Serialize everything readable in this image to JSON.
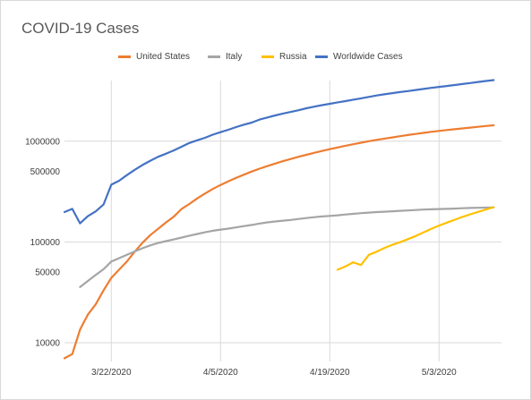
{
  "chart_data": {
    "type": "line",
    "title": "COVID-19 Cases",
    "xlabel": "",
    "ylabel": "",
    "y_scale": "log",
    "ylim": [
      6500,
      4000000
    ],
    "xlim": [
      "2020-03-16",
      "2020-05-11"
    ],
    "grid": true,
    "legend_placement": "top",
    "x_ticks": [
      {
        "date": "2020-03-22",
        "label": "3/22/2020"
      },
      {
        "date": "2020-04-05",
        "label": "4/5/2020"
      },
      {
        "date": "2020-04-19",
        "label": "4/19/2020"
      },
      {
        "date": "2020-05-03",
        "label": "5/3/2020"
      }
    ],
    "y_ticks": [
      {
        "value": 10000,
        "label": "10000"
      },
      {
        "value": 50000,
        "label": "50000"
      },
      {
        "value": 100000,
        "label": "100000"
      },
      {
        "value": 500000,
        "label": "500000"
      },
      {
        "value": 1000000,
        "label": "1000000"
      }
    ],
    "series": [
      {
        "name": "United States",
        "color": "#ED7D31",
        "points": [
          [
            "2020-03-16",
            7000
          ],
          [
            "2020-03-17",
            7700
          ],
          [
            "2020-03-18",
            13500
          ],
          [
            "2020-03-19",
            19000
          ],
          [
            "2020-03-20",
            24000
          ],
          [
            "2020-03-21",
            33000
          ],
          [
            "2020-03-22",
            44000
          ],
          [
            "2020-03-23",
            53000
          ],
          [
            "2020-03-24",
            64000
          ],
          [
            "2020-03-25",
            80000
          ],
          [
            "2020-03-26",
            98000
          ],
          [
            "2020-03-27",
            117000
          ],
          [
            "2020-03-28",
            135000
          ],
          [
            "2020-03-29",
            156000
          ],
          [
            "2020-03-30",
            178000
          ],
          [
            "2020-03-31",
            212000
          ],
          [
            "2020-04-01",
            238000
          ],
          [
            "2020-04-02",
            270000
          ],
          [
            "2020-04-03",
            302000
          ],
          [
            "2020-04-04",
            335000
          ],
          [
            "2020-04-05",
            368000
          ],
          [
            "2020-04-06",
            400000
          ],
          [
            "2020-04-07",
            432000
          ],
          [
            "2020-04-08",
            465000
          ],
          [
            "2020-04-09",
            500000
          ],
          [
            "2020-04-10",
            533000
          ],
          [
            "2020-04-11",
            566000
          ],
          [
            "2020-04-12",
            599000
          ],
          [
            "2020-04-13",
            633000
          ],
          [
            "2020-04-14",
            666000
          ],
          [
            "2020-04-15",
            700000
          ],
          [
            "2020-04-16",
            733000
          ],
          [
            "2020-04-17",
            766000
          ],
          [
            "2020-04-18",
            800000
          ],
          [
            "2020-04-19",
            833000
          ],
          [
            "2020-04-20",
            866000
          ],
          [
            "2020-04-21",
            900000
          ],
          [
            "2020-04-22",
            933000
          ],
          [
            "2020-04-23",
            966000
          ],
          [
            "2020-04-24",
            1000000
          ],
          [
            "2020-04-25",
            1030000
          ],
          [
            "2020-04-26",
            1060000
          ],
          [
            "2020-04-27",
            1090000
          ],
          [
            "2020-04-28",
            1120000
          ],
          [
            "2020-04-29",
            1150000
          ],
          [
            "2020-04-30",
            1180000
          ],
          [
            "2020-05-01",
            1210000
          ],
          [
            "2020-05-02",
            1240000
          ],
          [
            "2020-05-03",
            1265000
          ],
          [
            "2020-05-04",
            1290000
          ],
          [
            "2020-05-05",
            1315000
          ],
          [
            "2020-05-06",
            1340000
          ],
          [
            "2020-05-07",
            1365000
          ],
          [
            "2020-05-08",
            1390000
          ],
          [
            "2020-05-09",
            1415000
          ],
          [
            "2020-05-10",
            1440000
          ]
        ]
      },
      {
        "name": "Italy",
        "color": "#A5A5A5",
        "points": [
          [
            "2020-03-18",
            35700
          ],
          [
            "2020-03-19",
            41000
          ],
          [
            "2020-03-20",
            47000
          ],
          [
            "2020-03-21",
            53500
          ],
          [
            "2020-03-22",
            63900
          ],
          [
            "2020-03-23",
            69000
          ],
          [
            "2020-03-24",
            74400
          ],
          [
            "2020-03-25",
            80500
          ],
          [
            "2020-03-26",
            86500
          ],
          [
            "2020-03-27",
            92500
          ],
          [
            "2020-03-28",
            97700
          ],
          [
            "2020-03-29",
            101700
          ],
          [
            "2020-03-30",
            105800
          ],
          [
            "2020-03-31",
            110500
          ],
          [
            "2020-04-01",
            115200
          ],
          [
            "2020-04-02",
            119800
          ],
          [
            "2020-04-03",
            124600
          ],
          [
            "2020-04-04",
            128900
          ],
          [
            "2020-04-05",
            132500
          ],
          [
            "2020-04-06",
            135600
          ],
          [
            "2020-04-07",
            139400
          ],
          [
            "2020-04-08",
            143600
          ],
          [
            "2020-04-09",
            147500
          ],
          [
            "2020-04-10",
            152300
          ],
          [
            "2020-04-11",
            156400
          ],
          [
            "2020-04-12",
            159500
          ],
          [
            "2020-04-13",
            162500
          ],
          [
            "2020-04-14",
            165100
          ],
          [
            "2020-04-15",
            168900
          ],
          [
            "2020-04-16",
            172400
          ],
          [
            "2020-04-17",
            175900
          ],
          [
            "2020-04-18",
            178900
          ],
          [
            "2020-04-19",
            181200
          ],
          [
            "2020-04-20",
            183900
          ],
          [
            "2020-04-21",
            187300
          ],
          [
            "2020-04-22",
            189900
          ],
          [
            "2020-04-23",
            192900
          ],
          [
            "2020-04-24",
            195300
          ],
          [
            "2020-04-25",
            197700
          ],
          [
            "2020-04-26",
            199400
          ],
          [
            "2020-04-27",
            201500
          ],
          [
            "2020-04-28",
            203600
          ],
          [
            "2020-04-29",
            205400
          ],
          [
            "2020-04-30",
            207400
          ],
          [
            "2020-05-01",
            209300
          ],
          [
            "2020-05-02",
            210700
          ],
          [
            "2020-05-03",
            211900
          ],
          [
            "2020-05-04",
            213000
          ],
          [
            "2020-05-05",
            214400
          ],
          [
            "2020-05-06",
            215900
          ],
          [
            "2020-05-07",
            217200
          ],
          [
            "2020-05-08",
            218300
          ],
          [
            "2020-05-09",
            219100
          ],
          [
            "2020-05-10",
            219800
          ]
        ]
      },
      {
        "name": "Russia",
        "color": "#FFC000",
        "points": [
          [
            "2020-04-20",
            53000
          ],
          [
            "2020-04-21",
            57000
          ],
          [
            "2020-04-22",
            62800
          ],
          [
            "2020-04-23",
            59000
          ],
          [
            "2020-04-24",
            74500
          ],
          [
            "2020-04-25",
            80000
          ],
          [
            "2020-04-26",
            87100
          ],
          [
            "2020-04-27",
            93600
          ],
          [
            "2020-04-28",
            99400
          ],
          [
            "2020-04-29",
            106500
          ],
          [
            "2020-04-30",
            114400
          ],
          [
            "2020-05-01",
            124100
          ],
          [
            "2020-05-02",
            134700
          ],
          [
            "2020-05-03",
            145300
          ],
          [
            "2020-05-04",
            155400
          ],
          [
            "2020-05-05",
            165900
          ],
          [
            "2020-05-06",
            177200
          ],
          [
            "2020-05-07",
            187900
          ],
          [
            "2020-05-08",
            198700
          ],
          [
            "2020-05-09",
            209700
          ],
          [
            "2020-05-10",
            221300
          ]
        ]
      },
      {
        "name": "Worldwide Cases",
        "color": "#4472C4",
        "points": [
          [
            "2020-03-16",
            198000
          ],
          [
            "2020-03-17",
            213000
          ],
          [
            "2020-03-18",
            153000
          ],
          [
            "2020-03-19",
            180000
          ],
          [
            "2020-03-20",
            201000
          ],
          [
            "2020-03-21",
            235000
          ],
          [
            "2020-03-22",
            370000
          ],
          [
            "2020-03-23",
            405000
          ],
          [
            "2020-03-24",
            460000
          ],
          [
            "2020-03-25",
            520000
          ],
          [
            "2020-03-26",
            580000
          ],
          [
            "2020-03-27",
            640000
          ],
          [
            "2020-03-28",
            700000
          ],
          [
            "2020-03-29",
            750000
          ],
          [
            "2020-03-30",
            810000
          ],
          [
            "2020-03-31",
            880000
          ],
          [
            "2020-04-01",
            960000
          ],
          [
            "2020-04-02",
            1020000
          ],
          [
            "2020-04-03",
            1080000
          ],
          [
            "2020-04-04",
            1160000
          ],
          [
            "2020-04-05",
            1230000
          ],
          [
            "2020-04-06",
            1300000
          ],
          [
            "2020-04-07",
            1380000
          ],
          [
            "2020-04-08",
            1460000
          ],
          [
            "2020-04-09",
            1530000
          ],
          [
            "2020-04-10",
            1640000
          ],
          [
            "2020-04-11",
            1720000
          ],
          [
            "2020-04-12",
            1800000
          ],
          [
            "2020-04-13",
            1880000
          ],
          [
            "2020-04-14",
            1950000
          ],
          [
            "2020-04-15",
            2030000
          ],
          [
            "2020-04-16",
            2120000
          ],
          [
            "2020-04-17",
            2200000
          ],
          [
            "2020-04-18",
            2280000
          ],
          [
            "2020-04-19",
            2350000
          ],
          [
            "2020-04-20",
            2430000
          ],
          [
            "2020-04-21",
            2500000
          ],
          [
            "2020-04-22",
            2580000
          ],
          [
            "2020-04-23",
            2660000
          ],
          [
            "2020-04-24",
            2750000
          ],
          [
            "2020-04-25",
            2840000
          ],
          [
            "2020-04-26",
            2920000
          ],
          [
            "2020-04-27",
            3000000
          ],
          [
            "2020-04-28",
            3070000
          ],
          [
            "2020-04-29",
            3140000
          ],
          [
            "2020-04-30",
            3220000
          ],
          [
            "2020-05-01",
            3300000
          ],
          [
            "2020-05-02",
            3380000
          ],
          [
            "2020-05-03",
            3460000
          ],
          [
            "2020-05-04",
            3530000
          ],
          [
            "2020-05-05",
            3610000
          ],
          [
            "2020-05-06",
            3690000
          ],
          [
            "2020-05-07",
            3780000
          ],
          [
            "2020-05-08",
            3870000
          ],
          [
            "2020-05-09",
            3960000
          ],
          [
            "2020-05-10",
            4040000
          ]
        ]
      }
    ]
  }
}
